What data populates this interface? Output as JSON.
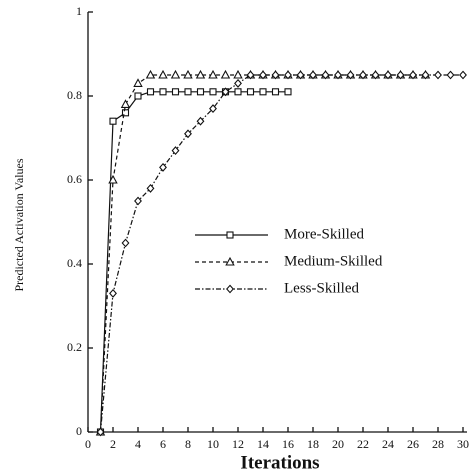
{
  "chart_data": {
    "type": "line",
    "x_label": "Iterations",
    "y_label": "Predicted Activation Values",
    "x": [
      1,
      2,
      3,
      4,
      5,
      6,
      7,
      8,
      9,
      10,
      11,
      12,
      13,
      14,
      15,
      16,
      17,
      18,
      19,
      20,
      21,
      22,
      23,
      24,
      25,
      26,
      27,
      28,
      29,
      30
    ],
    "series": [
      {
        "name": "More-Skilled",
        "color": "#111111",
        "dash": "solid",
        "marker": "square",
        "values": [
          0,
          0.74,
          0.76,
          0.8,
          0.81,
          0.81,
          0.81,
          0.81,
          0.81,
          0.81,
          0.81,
          0.81,
          0.81,
          0.81,
          0.81,
          0.81,
          null,
          null,
          null,
          null,
          null,
          null,
          null,
          null,
          null,
          null,
          null,
          null,
          null,
          null
        ]
      },
      {
        "name": "Medium-Skilled",
        "color": "#111111",
        "dash": "dashed",
        "marker": "triangle",
        "values": [
          0,
          0.6,
          0.78,
          0.83,
          0.85,
          0.85,
          0.85,
          0.85,
          0.85,
          0.85,
          0.85,
          0.85,
          0.85,
          0.85,
          0.85,
          0.85,
          0.85,
          0.85,
          0.85,
          0.85,
          0.85,
          0.85,
          0.85,
          0.85,
          0.85,
          0.85,
          0.85,
          null,
          null,
          null
        ]
      },
      {
        "name": "Less-Skilled",
        "color": "#111111",
        "dash": "dashdot",
        "marker": "diamond",
        "values": [
          0,
          0.33,
          0.45,
          0.55,
          0.58,
          0.63,
          0.67,
          0.71,
          0.74,
          0.77,
          0.81,
          0.83,
          0.85,
          0.85,
          0.85,
          0.85,
          0.85,
          0.85,
          0.85,
          0.85,
          0.85,
          0.85,
          0.85,
          0.85,
          0.85,
          0.85,
          0.85,
          0.85,
          0.85,
          0.85
        ]
      }
    ],
    "xlim": [
      0,
      30
    ],
    "xticks": [
      0,
      2,
      4,
      6,
      8,
      10,
      12,
      14,
      16,
      18,
      20,
      22,
      24,
      26,
      28,
      30
    ],
    "ylim": [
      0,
      1
    ],
    "yticks": [
      0,
      0.2,
      0.4,
      0.6,
      0.8,
      1
    ],
    "grid": false
  }
}
